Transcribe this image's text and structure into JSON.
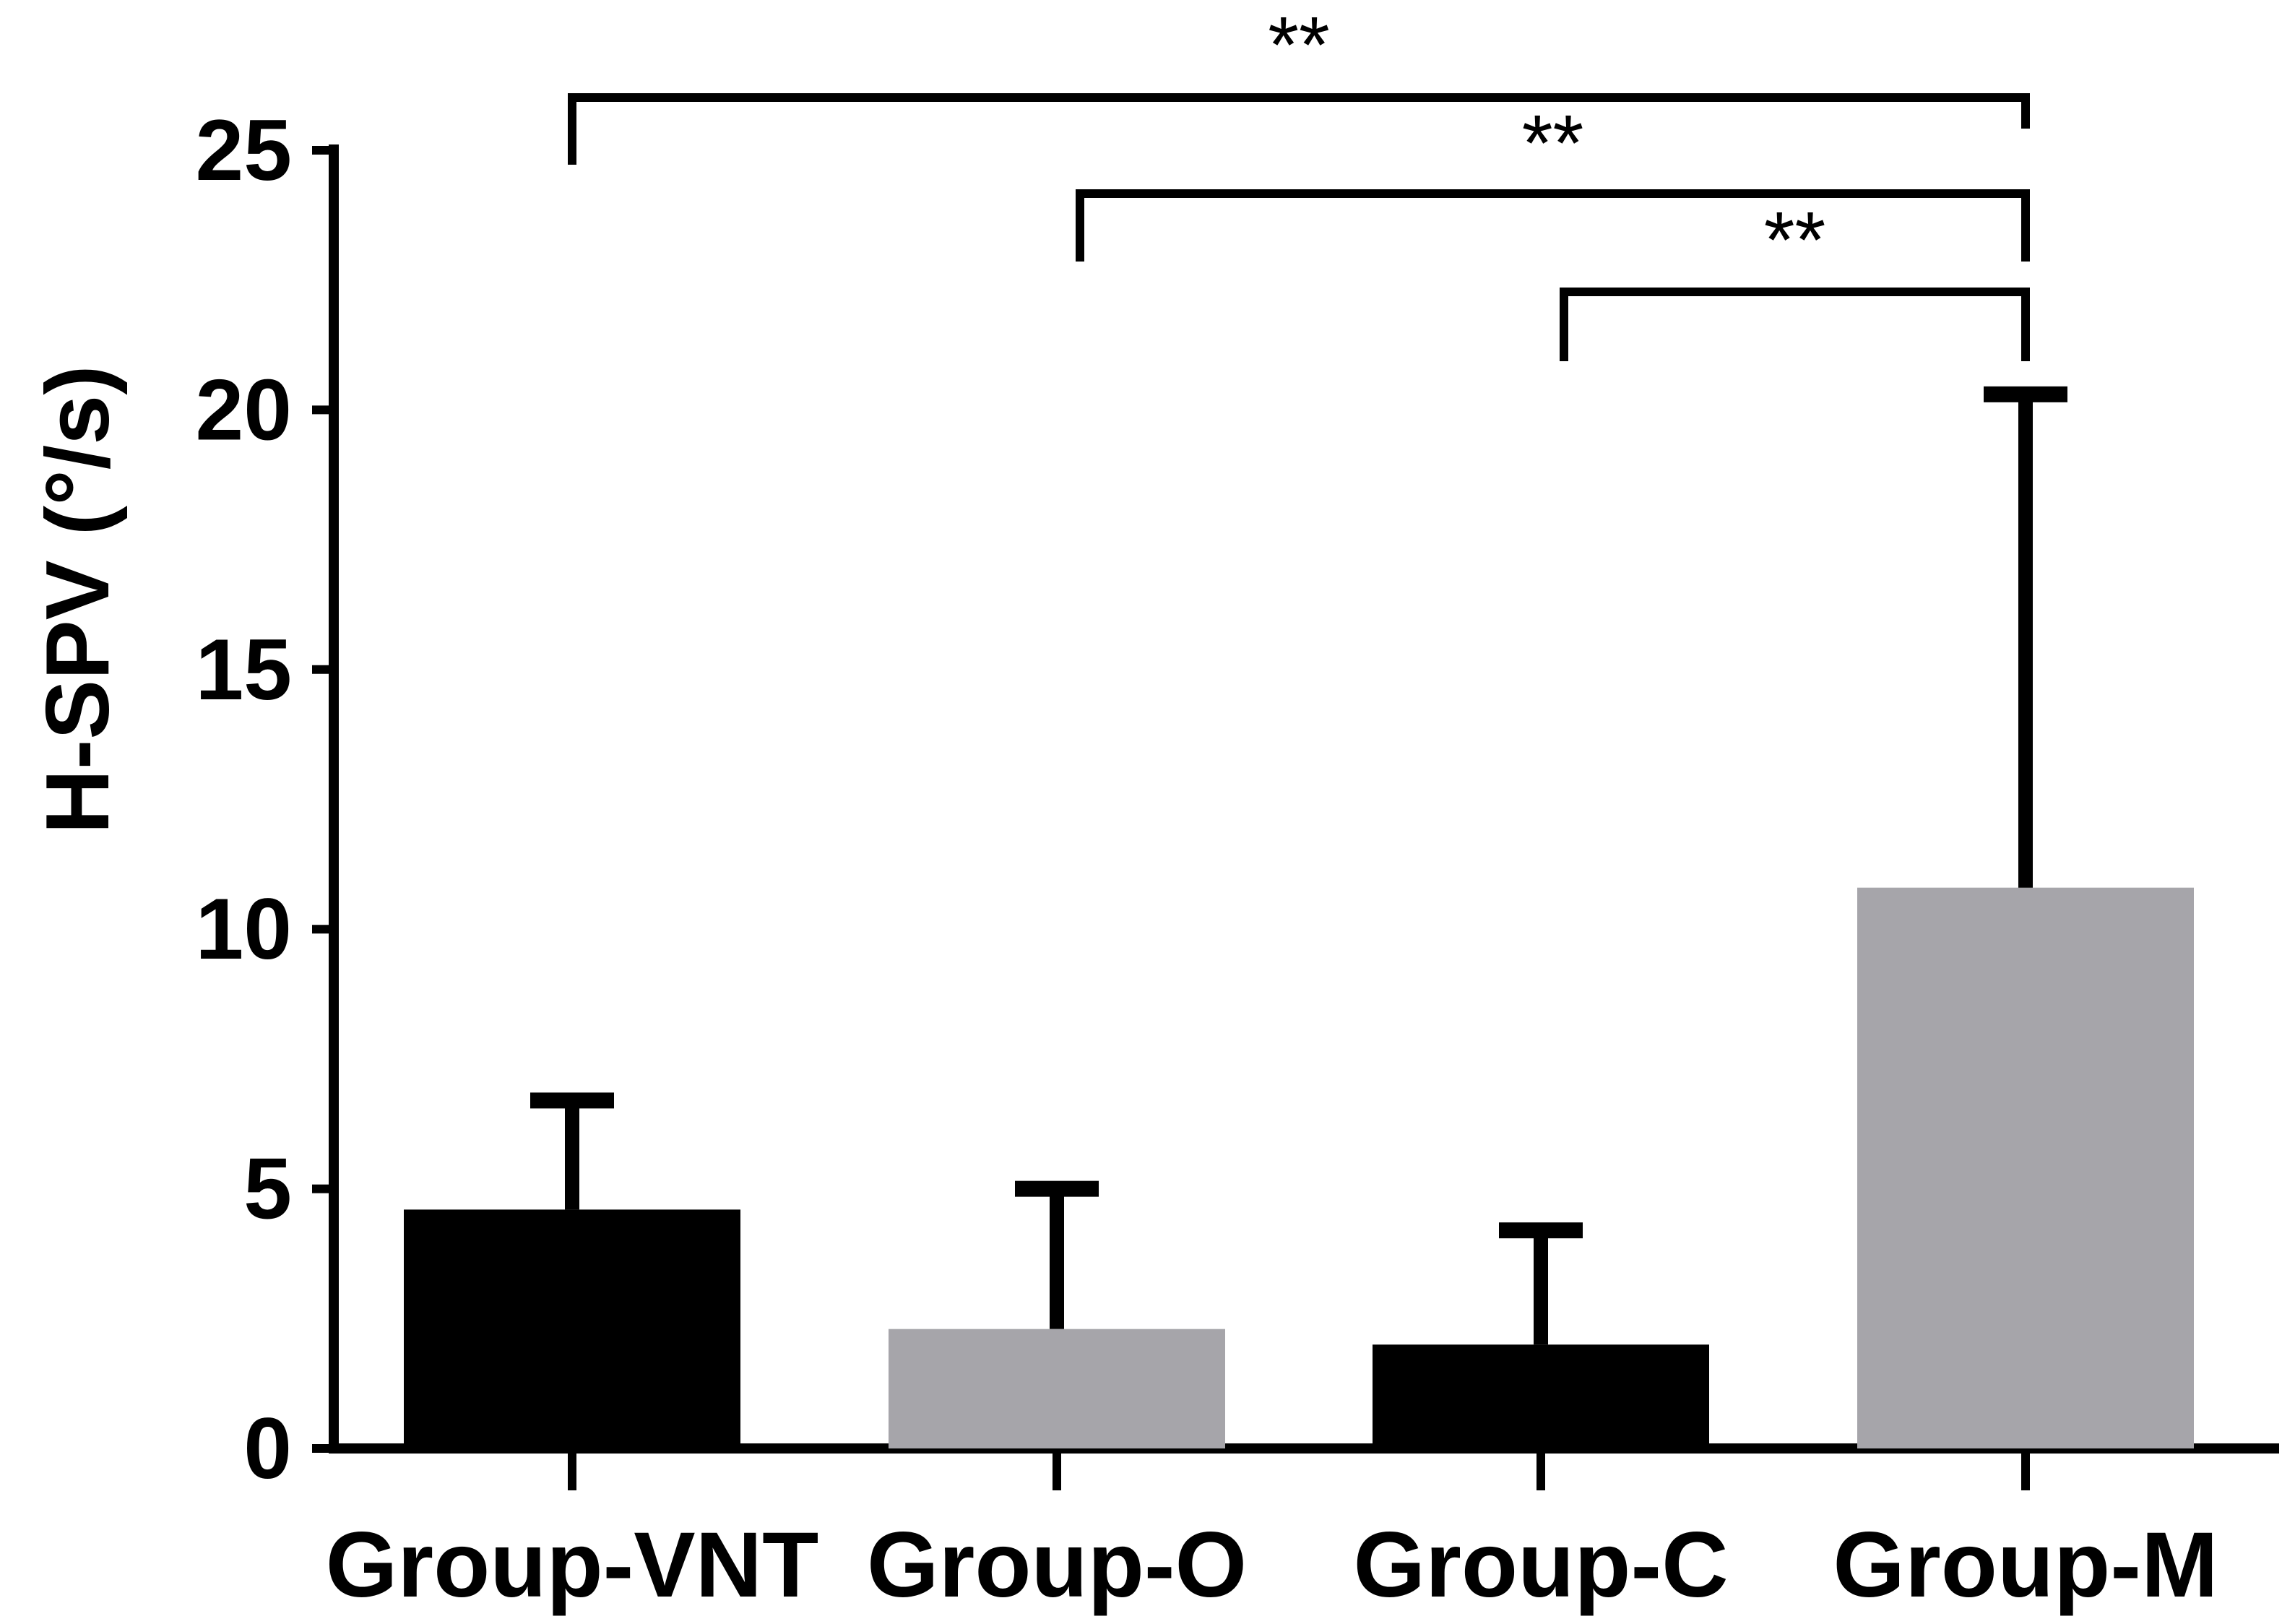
{
  "chart_data": {
    "type": "bar",
    "title": "",
    "xlabel": "",
    "ylabel": "H-SPV (°/s)",
    "ylim": [
      0,
      25
    ],
    "yticks": [
      0,
      5,
      10,
      15,
      20,
      25
    ],
    "ytick_labels": [
      "0",
      "5",
      "10",
      "15",
      "20",
      "25"
    ],
    "grid": false,
    "legend": "none",
    "categories": [
      "Group-VNT",
      "Group-O",
      "Group-C",
      "Group-M"
    ],
    "values": [
      4.6,
      2.3,
      2.0,
      10.8
    ],
    "error_upper": [
      6.7,
      5.0,
      4.2,
      20.3
    ],
    "bar_colors": [
      "#000000",
      "#a6a5aa",
      "#000000",
      "#a6a5aa"
    ],
    "significance": [
      {
        "from": "Group-VNT",
        "to": "Group-M",
        "label": "**"
      },
      {
        "from": "Group-O",
        "to": "Group-M",
        "label": "**"
      },
      {
        "from": "Group-C",
        "to": "Group-M",
        "label": "**"
      }
    ]
  }
}
